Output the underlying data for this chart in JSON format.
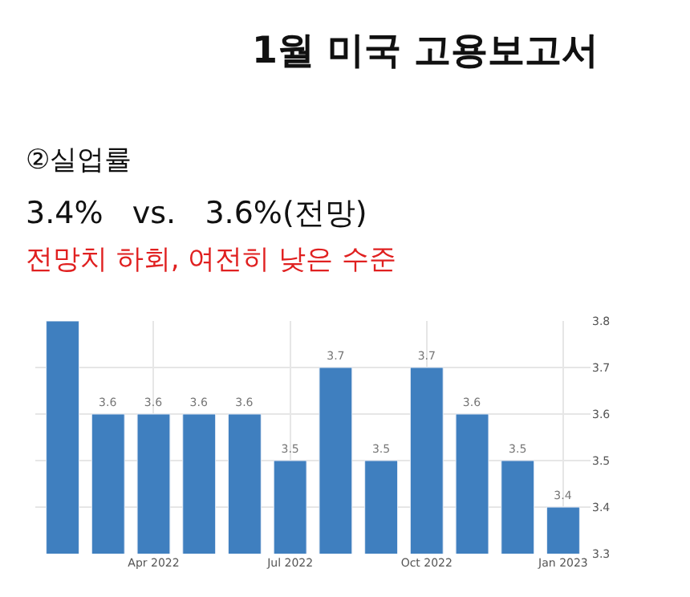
{
  "chart_data": {
    "type": "bar",
    "title": "1월 미국 고용보고서",
    "annotations": [
      "②실업률",
      "3.4%   vs.   3.6%(전망)",
      "전망치 하회, 여전히 낮은 수준"
    ],
    "categories": [
      null,
      null,
      "Apr 2022",
      null,
      null,
      "Jul 2022",
      null,
      null,
      "Oct 2022",
      null,
      null,
      "Jan 2023"
    ],
    "values": [
      3.8,
      3.6,
      3.6,
      3.6,
      3.6,
      3.5,
      3.7,
      3.5,
      3.7,
      3.6,
      3.5,
      3.4
    ],
    "value_labels": [
      null,
      "3.6",
      "3.6",
      "3.6",
      "3.6",
      "3.5",
      "3.7",
      "3.5",
      "3.7",
      "3.6",
      "3.5",
      "3.4"
    ],
    "color": "#3f7fbf",
    "ylim": [
      3.3,
      3.8
    ],
    "yticks": [
      3.3,
      3.4,
      3.5,
      3.6,
      3.7,
      3.8
    ],
    "grid": true
  }
}
